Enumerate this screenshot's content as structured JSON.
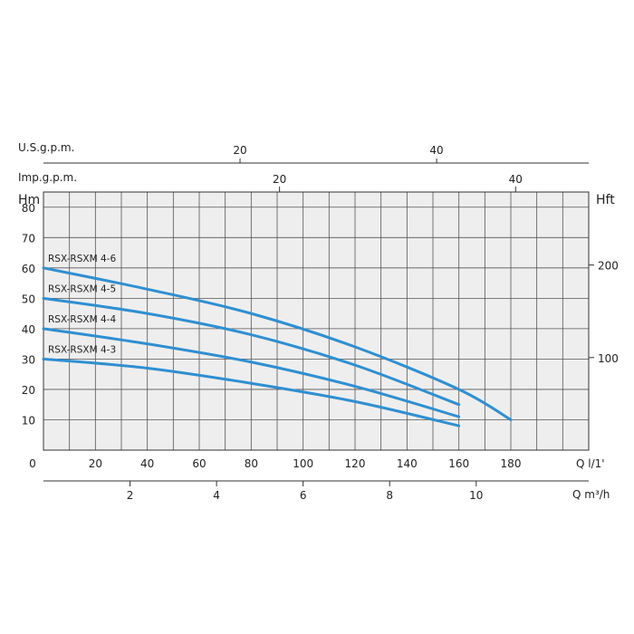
{
  "colors": {
    "curve": "#2f8fd1",
    "grid": "#555555",
    "plot_bg": "#eeeeee",
    "axis": "#333333"
  },
  "chart_data": {
    "type": "line",
    "title": "",
    "x_primary": {
      "unit": "Q l/1'",
      "range": [
        0,
        210
      ],
      "ticks": [
        0,
        20,
        40,
        60,
        80,
        100,
        120,
        140,
        160,
        180
      ]
    },
    "x_secondary": {
      "unit": "Q m³/h",
      "ticks": [
        2,
        4,
        6,
        8,
        10
      ]
    },
    "top_axes": [
      {
        "label": "U.S.g.p.m.",
        "ticks": [
          20,
          40
        ]
      },
      {
        "label": "Imp.g.p.m.",
        "ticks": [
          20,
          40
        ]
      }
    ],
    "y_left": {
      "label": "Hm",
      "range": [
        0,
        85
      ],
      "ticks": [
        10,
        20,
        30,
        40,
        50,
        60,
        70,
        80
      ]
    },
    "y_right": {
      "label": "Hft",
      "ticks": [
        100,
        200
      ]
    },
    "grid": true,
    "series": [
      {
        "name": "RSX-RSXM 4-6",
        "x": [
          0,
          40,
          80,
          120,
          160,
          180
        ],
        "y": [
          60,
          53,
          45,
          34,
          20,
          10
        ]
      },
      {
        "name": "RSX-RSXM 4-5",
        "x": [
          0,
          40,
          80,
          120,
          160
        ],
        "y": [
          50,
          45,
          38,
          28,
          15
        ]
      },
      {
        "name": "RSX-RSXM 4-4",
        "x": [
          0,
          40,
          80,
          120,
          160
        ],
        "y": [
          40,
          35,
          29,
          21,
          11
        ]
      },
      {
        "name": "RSX-RSXM 4-3",
        "x": [
          0,
          40,
          80,
          120,
          160
        ],
        "y": [
          30,
          27,
          22,
          16,
          8
        ]
      }
    ]
  }
}
